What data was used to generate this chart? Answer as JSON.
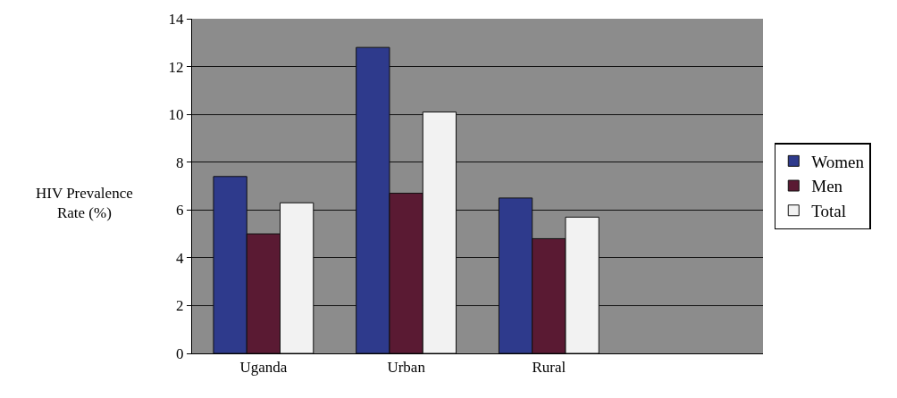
{
  "chart_data": {
    "type": "bar",
    "ylabel": "HIV Prevalence\nRate (%)",
    "categories": [
      "Uganda",
      "Urban",
      "Rural",
      null
    ],
    "series": [
      {
        "name": "Women",
        "color": "#2e3a8c",
        "values": [
          7.4,
          12.8,
          6.5,
          null
        ]
      },
      {
        "name": "Men",
        "color": "#5a1a33",
        "values": [
          5.0,
          6.7,
          4.8,
          null
        ]
      },
      {
        "name": "Total",
        "color": "#f2f2f2",
        "values": [
          6.3,
          10.1,
          5.7,
          null
        ]
      }
    ],
    "ylim": [
      0,
      14
    ],
    "yticks": [
      0,
      2,
      4,
      6,
      8,
      10,
      12,
      14
    ],
    "grid": "y",
    "legend": "right"
  }
}
